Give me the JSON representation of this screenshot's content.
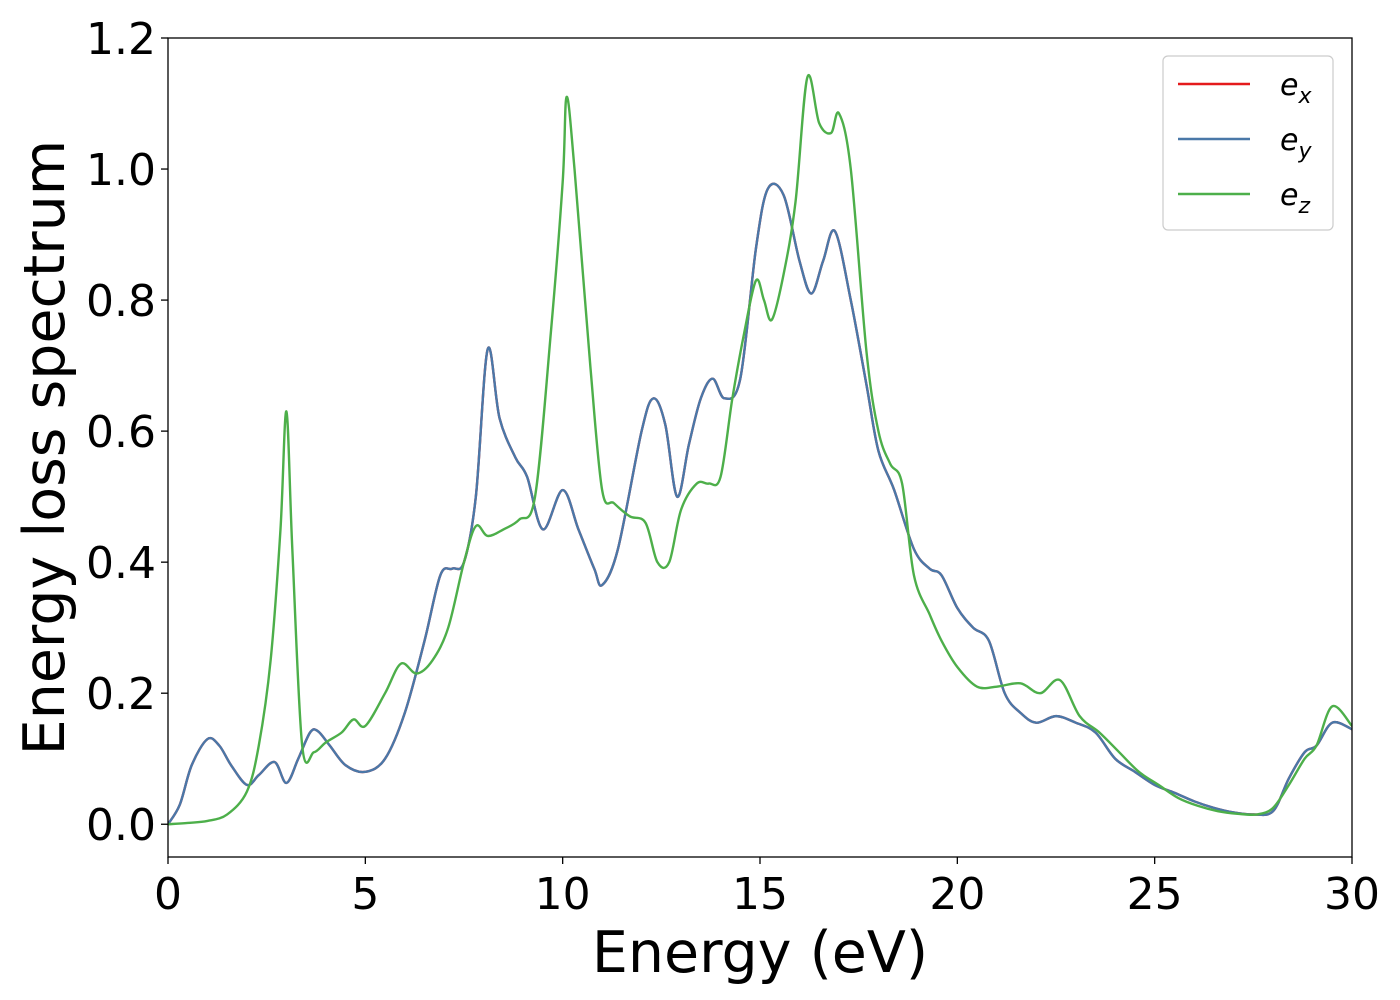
{
  "chart_data": {
    "type": "line",
    "title": "",
    "xlabel": "Energy (eV)",
    "ylabel": "Energy loss spectrum",
    "xlim": [
      0,
      30
    ],
    "ylim": [
      -0.05,
      1.2
    ],
    "xticks": [
      0,
      5,
      10,
      15,
      20,
      25,
      30
    ],
    "xtick_labels": [
      "0",
      "5",
      "10",
      "15",
      "20",
      "25",
      "30"
    ],
    "yticks": [
      0.0,
      0.2,
      0.4,
      0.6,
      0.8,
      1.0,
      1.2
    ],
    "ytick_labels": [
      "0.0",
      "0.2",
      "0.4",
      "0.6",
      "0.8",
      "1.0",
      "1.2"
    ],
    "grid": false,
    "legend_position": "top-right",
    "series": [
      {
        "name": "e_x",
        "legend_base": "e",
        "legend_sub": "x",
        "color": "#e41a1c",
        "x": [
          0,
          0.3,
          0.6,
          1.0,
          1.3,
          1.6,
          2.0,
          2.3,
          2.7,
          3.0,
          3.3,
          3.6,
          3.8,
          4.1,
          4.5,
          5.0,
          5.5,
          6.0,
          6.5,
          6.9,
          7.2,
          7.5,
          7.8,
          8.1,
          8.4,
          8.8,
          9.1,
          9.5,
          10.0,
          10.4,
          10.8,
          11.0,
          11.4,
          12.0,
          12.3,
          12.6,
          12.9,
          13.2,
          13.5,
          13.8,
          14.1,
          14.5,
          14.9,
          15.2,
          15.6,
          16.0,
          16.3,
          16.6,
          16.9,
          17.3,
          17.7,
          18.0,
          18.4,
          18.9,
          19.3,
          19.6,
          20.0,
          20.4,
          20.8,
          21.2,
          21.6,
          22.0,
          22.5,
          23.0,
          23.5,
          24.0,
          24.5,
          25.0,
          25.5,
          26.0,
          26.5,
          27.0,
          27.5,
          28.0,
          28.4,
          28.8,
          29.1,
          29.5,
          30.0
        ],
        "y": [
          0.0,
          0.03,
          0.09,
          0.13,
          0.12,
          0.09,
          0.06,
          0.075,
          0.095,
          0.063,
          0.1,
          0.14,
          0.142,
          0.12,
          0.09,
          0.08,
          0.1,
          0.17,
          0.28,
          0.38,
          0.39,
          0.4,
          0.5,
          0.725,
          0.62,
          0.56,
          0.53,
          0.45,
          0.51,
          0.45,
          0.39,
          0.365,
          0.42,
          0.6,
          0.65,
          0.61,
          0.5,
          0.58,
          0.65,
          0.68,
          0.65,
          0.68,
          0.88,
          0.97,
          0.96,
          0.86,
          0.81,
          0.86,
          0.905,
          0.8,
          0.67,
          0.57,
          0.51,
          0.42,
          0.39,
          0.38,
          0.33,
          0.3,
          0.28,
          0.2,
          0.17,
          0.155,
          0.165,
          0.155,
          0.14,
          0.1,
          0.08,
          0.06,
          0.048,
          0.035,
          0.025,
          0.018,
          0.015,
          0.02,
          0.07,
          0.11,
          0.12,
          0.155,
          0.145
        ]
      },
      {
        "name": "e_y",
        "legend_base": "e",
        "legend_sub": "y",
        "color": "#4a78a8",
        "x": [
          0,
          0.3,
          0.6,
          1.0,
          1.3,
          1.6,
          2.0,
          2.3,
          2.7,
          3.0,
          3.3,
          3.6,
          3.8,
          4.1,
          4.5,
          5.0,
          5.5,
          6.0,
          6.5,
          6.9,
          7.2,
          7.5,
          7.8,
          8.1,
          8.4,
          8.8,
          9.1,
          9.5,
          10.0,
          10.4,
          10.8,
          11.0,
          11.4,
          12.0,
          12.3,
          12.6,
          12.9,
          13.2,
          13.5,
          13.8,
          14.1,
          14.5,
          14.9,
          15.2,
          15.6,
          16.0,
          16.3,
          16.6,
          16.9,
          17.3,
          17.7,
          18.0,
          18.4,
          18.9,
          19.3,
          19.6,
          20.0,
          20.4,
          20.8,
          21.2,
          21.6,
          22.0,
          22.5,
          23.0,
          23.5,
          24.0,
          24.5,
          25.0,
          25.5,
          26.0,
          26.5,
          27.0,
          27.5,
          28.0,
          28.4,
          28.8,
          29.1,
          29.5,
          30.0
        ],
        "y": [
          0.0,
          0.03,
          0.09,
          0.13,
          0.12,
          0.09,
          0.06,
          0.075,
          0.095,
          0.063,
          0.1,
          0.14,
          0.142,
          0.12,
          0.09,
          0.08,
          0.1,
          0.17,
          0.28,
          0.38,
          0.39,
          0.4,
          0.5,
          0.725,
          0.62,
          0.56,
          0.53,
          0.45,
          0.51,
          0.45,
          0.39,
          0.365,
          0.42,
          0.6,
          0.65,
          0.61,
          0.5,
          0.58,
          0.65,
          0.68,
          0.65,
          0.68,
          0.88,
          0.97,
          0.96,
          0.86,
          0.81,
          0.86,
          0.905,
          0.8,
          0.67,
          0.57,
          0.51,
          0.42,
          0.39,
          0.38,
          0.33,
          0.3,
          0.28,
          0.2,
          0.17,
          0.155,
          0.165,
          0.155,
          0.14,
          0.1,
          0.08,
          0.06,
          0.048,
          0.035,
          0.025,
          0.018,
          0.015,
          0.02,
          0.07,
          0.11,
          0.12,
          0.155,
          0.145
        ]
      },
      {
        "name": "e_z",
        "legend_base": "e",
        "legend_sub": "z",
        "color": "#4daf4a",
        "x": [
          0,
          0.5,
          1.0,
          1.5,
          2.0,
          2.3,
          2.6,
          2.85,
          3.0,
          3.15,
          3.4,
          3.7,
          4.0,
          4.4,
          4.7,
          5.0,
          5.5,
          5.9,
          6.3,
          6.7,
          7.1,
          7.5,
          7.8,
          8.1,
          8.5,
          8.9,
          9.3,
          9.7,
          10.0,
          10.1,
          10.3,
          10.7,
          11.0,
          11.3,
          11.7,
          12.1,
          12.4,
          12.7,
          13.0,
          13.4,
          13.7,
          14.0,
          14.3,
          14.6,
          14.9,
          15.1,
          15.3,
          15.6,
          15.9,
          16.2,
          16.5,
          16.8,
          17.0,
          17.3,
          17.7,
          18.0,
          18.3,
          18.6,
          18.9,
          19.3,
          19.6,
          20.0,
          20.5,
          21.0,
          21.6,
          22.1,
          22.6,
          23.1,
          23.6,
          24.1,
          24.6,
          25.1,
          25.6,
          26.1,
          26.6,
          27.1,
          27.6,
          28.0,
          28.4,
          28.8,
          29.1,
          29.5,
          30.0
        ],
        "y": [
          0.0,
          0.002,
          0.005,
          0.015,
          0.05,
          0.12,
          0.25,
          0.45,
          0.63,
          0.42,
          0.12,
          0.11,
          0.125,
          0.14,
          0.16,
          0.15,
          0.2,
          0.245,
          0.23,
          0.25,
          0.3,
          0.4,
          0.455,
          0.44,
          0.45,
          0.465,
          0.5,
          0.75,
          0.98,
          1.11,
          1.0,
          0.7,
          0.51,
          0.49,
          0.47,
          0.46,
          0.4,
          0.4,
          0.48,
          0.52,
          0.52,
          0.53,
          0.65,
          0.75,
          0.83,
          0.8,
          0.77,
          0.84,
          0.95,
          1.14,
          1.07,
          1.055,
          1.085,
          1.0,
          0.72,
          0.6,
          0.55,
          0.52,
          0.38,
          0.32,
          0.28,
          0.24,
          0.21,
          0.21,
          0.215,
          0.2,
          0.22,
          0.165,
          0.14,
          0.11,
          0.08,
          0.06,
          0.04,
          0.028,
          0.02,
          0.016,
          0.015,
          0.025,
          0.06,
          0.1,
          0.12,
          0.18,
          0.15
        ]
      }
    ]
  }
}
